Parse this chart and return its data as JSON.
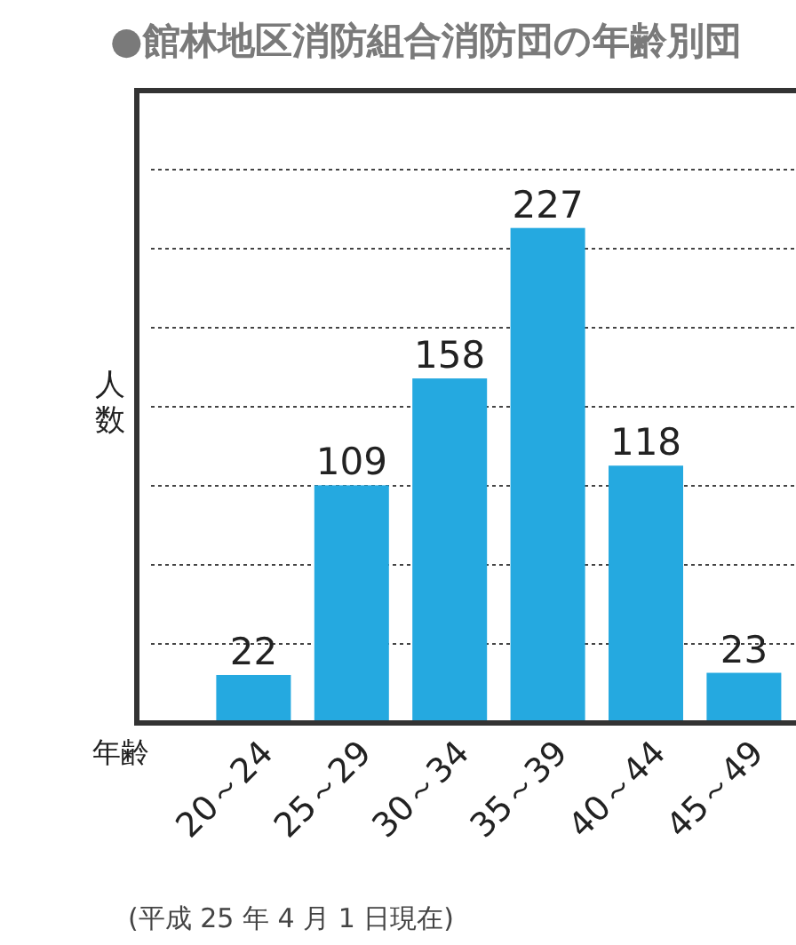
{
  "chart_data": {
    "type": "bar",
    "title": "●館林地区消防組合消防団の年齢別団",
    "xlabel": "年齢",
    "ylabel": "人数",
    "categories": [
      "20～24",
      "25～29",
      "30～34",
      "35～39",
      "40～44",
      "45～49"
    ],
    "values": [
      22,
      109,
      158,
      227,
      118,
      23
    ],
    "color": "#25a9e0",
    "data_labels": true,
    "ylim": [
      0,
      290
    ],
    "yticks": [
      {
        "value": 36.25,
        "label": null
      },
      {
        "value": 72.5,
        "label": null
      },
      {
        "value": 108.75,
        "label": null
      },
      {
        "value": 145,
        "label": null
      },
      {
        "value": 181.25,
        "label": null
      },
      {
        "value": 217.5,
        "label": null
      },
      {
        "value": 253.75,
        "label": null
      }
    ],
    "grid": "y",
    "tick_labels": "x",
    "annotations": [
      "(平成 25 年 4 月 1 日現在)"
    ]
  }
}
